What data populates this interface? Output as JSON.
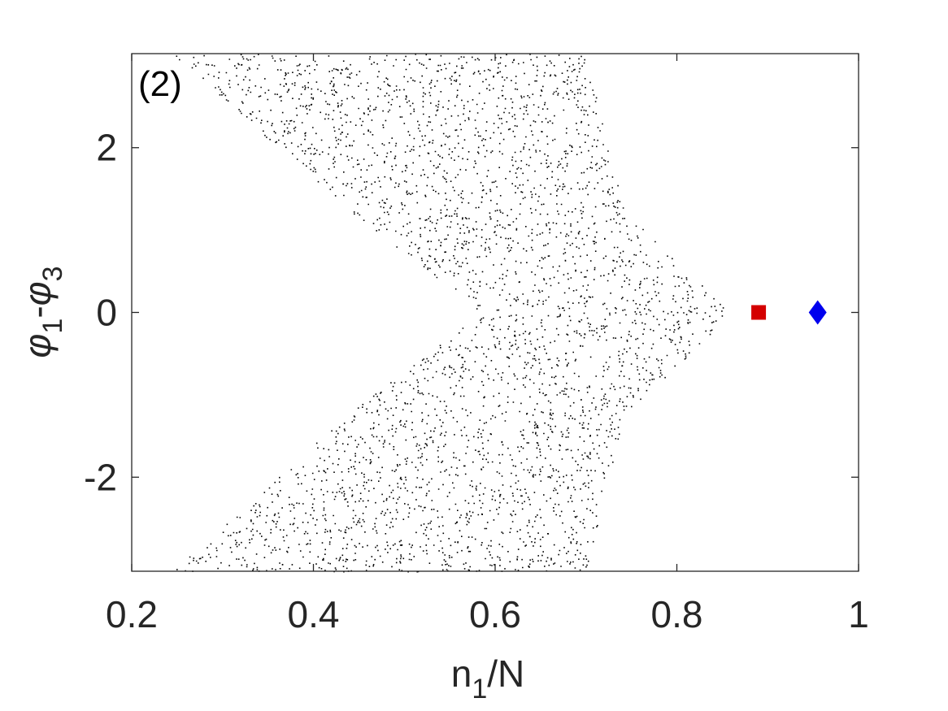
{
  "chart_data": {
    "type": "scatter",
    "panel_label": "(2)",
    "xlabel": {
      "main": "n",
      "sub": "1",
      "rest": "/N"
    },
    "ylabel": {
      "sym1": "φ",
      "sub1": "1",
      "mid": "-",
      "sym2": "φ",
      "sub2": "3"
    },
    "xlim": [
      0.2,
      1.0
    ],
    "ylim": [
      -3.1416,
      3.1416
    ],
    "xticks": [
      0.2,
      0.4,
      0.6,
      0.8,
      1.0
    ],
    "xtick_labels": [
      "0.2",
      "0.4",
      "0.6",
      "0.8",
      "1"
    ],
    "yticks": [
      -2,
      0,
      2
    ],
    "ytick_labels": [
      "-2",
      "0",
      "2"
    ],
    "grid": false,
    "colors": {
      "axis": "#262626",
      "points": "#000000",
      "square_marker": "#d40000",
      "diamond_marker": "#0000ee"
    },
    "scatter_region": {
      "description_values": "uniformly distributed points bounded by the listed envelope; left boundary and right boundary as functions of y",
      "y_breakpoints": [
        -3.1416,
        -1.3,
        0.0,
        1.3,
        3.1416
      ],
      "left_boundary_x": [
        0.245,
        0.43,
        0.585,
        0.43,
        0.245
      ],
      "right_boundary_x": [
        0.7,
        0.74,
        0.86,
        0.74,
        0.7
      ],
      "point_count": 5200
    },
    "special_points": [
      {
        "name": "square",
        "x": 0.89,
        "y": 0.0,
        "marker": "square",
        "color": "#d40000"
      },
      {
        "name": "diamond",
        "x": 0.955,
        "y": 0.0,
        "marker": "diamond",
        "color": "#0000ee"
      }
    ]
  }
}
